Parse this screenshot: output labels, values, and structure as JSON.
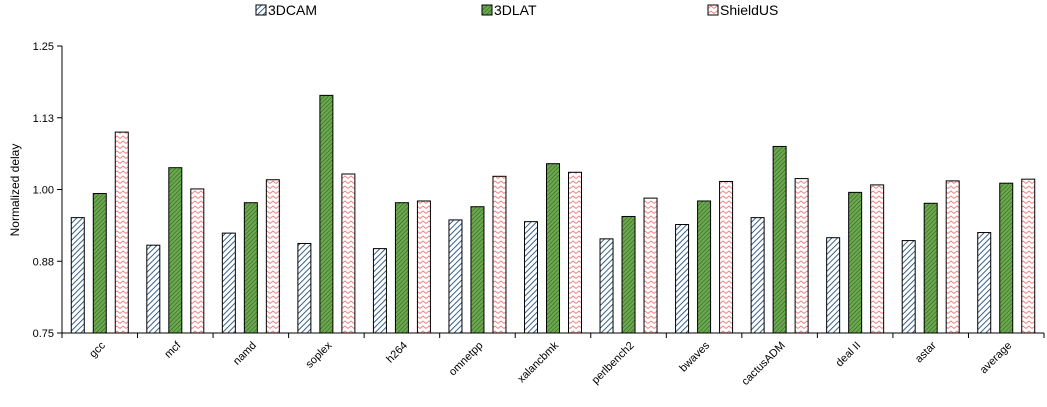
{
  "chart_data": {
    "type": "bar",
    "title": "",
    "xlabel": "",
    "ylabel": "Normalized delay",
    "ylim": [
      0.75,
      1.25
    ],
    "yticks": [
      "0.75",
      "0.88",
      "1.00",
      "1.13",
      "1.25"
    ],
    "ytick_values": [
      0.75,
      0.875,
      1.0,
      1.125,
      1.25
    ],
    "grid": false,
    "legend_position": "top",
    "categories": [
      "gcc",
      "mcf",
      "namd",
      "soplex",
      "h264",
      "omnetpp",
      "xalancbmk",
      "perlbench2",
      "bwaves",
      "cactusADM",
      "deal II",
      "astar",
      "average"
    ],
    "series": [
      {
        "name": "3DCAM",
        "pattern": "diagonal-hatch",
        "color": "#1f4e79",
        "fill": "#ffffff",
        "values": [
          0.951,
          0.903,
          0.924,
          0.906,
          0.897,
          0.947,
          0.944,
          0.914,
          0.939,
          0.951,
          0.916,
          0.911,
          0.925
        ]
      },
      {
        "name": "3DLAT",
        "pattern": "diagonal-hatch-dense",
        "color": "#3d6b22",
        "fill": "#6aa84f",
        "values": [
          0.993,
          1.038,
          0.977,
          1.164,
          0.977,
          0.97,
          1.045,
          0.953,
          0.98,
          1.075,
          0.995,
          0.976,
          1.011
        ]
      },
      {
        "name": "ShieldUS",
        "pattern": "zigzag",
        "color": "#f08080",
        "fill": "#ffffff",
        "values": [
          1.1,
          1.001,
          1.017,
          1.027,
          0.98,
          1.023,
          1.03,
          0.985,
          1.014,
          1.019,
          1.008,
          1.015,
          1.018
        ]
      }
    ]
  }
}
